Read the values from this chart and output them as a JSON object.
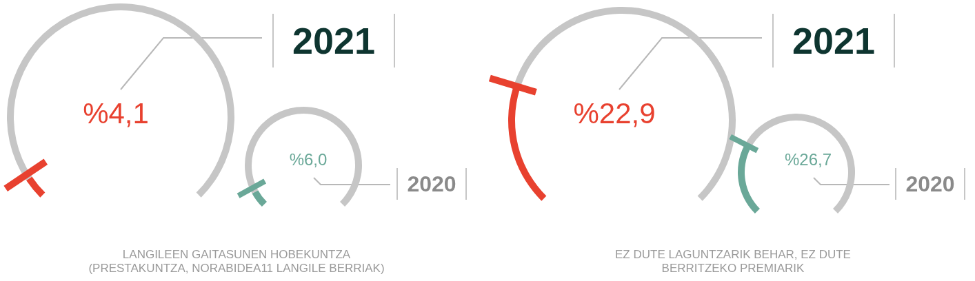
{
  "chart_data": [
    {
      "type": "donut",
      "title": "2021",
      "categories": [
        null,
        null
      ],
      "values": [
        4.1,
        95.9
      ],
      "colors": [
        "#e8412f",
        "#c6c6c6"
      ],
      "annotations": [
        "%4,1",
        "LANGILEEN GAITASUNEN HOBEKUNTZA\n(PRESTAKUNTZA, NORABIDEA11 LANGILE BERRIAK)"
      ]
    },
    {
      "type": "donut",
      "title": "2020",
      "categories": [
        null,
        null
      ],
      "values": [
        6.0,
        94.0
      ],
      "colors": [
        "#6aa898",
        "#c6c6c6"
      ],
      "annotations": [
        "%6,0"
      ]
    },
    {
      "type": "donut",
      "title": "2021",
      "categories": [
        null,
        null
      ],
      "values": [
        22.9,
        77.1
      ],
      "colors": [
        "#e8412f",
        "#c6c6c6"
      ],
      "annotations": [
        "%22,9",
        "EZ DUTE LAGUNTZARIK BEHAR, EZ DUTE\nBERRITZEKO PREMIARIK"
      ]
    },
    {
      "type": "donut",
      "title": "2020",
      "categories": [
        null,
        null
      ],
      "values": [
        26.7,
        73.3
      ],
      "colors": [
        "#6aa898",
        "#c6c6c6"
      ],
      "annotations": [
        "%26,7"
      ]
    }
  ]
}
